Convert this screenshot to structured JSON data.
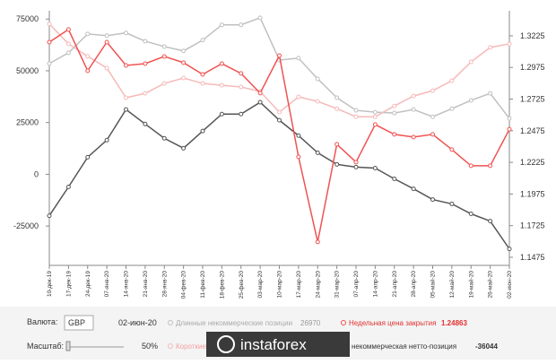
{
  "chart_data": {
    "type": "line",
    "categories": [
      "10-дек-19",
      "17-дек-19",
      "24-дек-19",
      "07-янв-20",
      "14-янв-20",
      "21-янв-20",
      "28-янв-20",
      "04-фев-20",
      "11-фев-20",
      "18-фев-20",
      "25-фев-20",
      "03-мар-20",
      "10-мар-20",
      "17-мар-20",
      "24-мар-20",
      "31-мар-20",
      "07-апр-20",
      "14-апр-20",
      "21-апр-20",
      "28-апр-20",
      "05-май-20",
      "12-май-20",
      "19-май-20",
      "26-май-20",
      "02-июн-20"
    ],
    "ylim": [
      -44000,
      79000
    ],
    "yticks": [
      -25000,
      0,
      25000,
      50000,
      75000
    ],
    "y2lim": [
      1.1411,
      1.3423
    ],
    "y2ticks": [
      1.1475,
      1.1725,
      1.1975,
      1.2225,
      1.2475,
      1.2725,
      1.2975,
      1.3225
    ],
    "series": [
      {
        "name": "Длинные некоммерческие позиции",
        "color": "#c0c0c0",
        "values": [
          53500,
          58700,
          67800,
          67000,
          68300,
          64300,
          61700,
          59600,
          64800,
          72200,
          72200,
          75600,
          55200,
          56100,
          46100,
          37000,
          30900,
          30000,
          29600,
          31300,
          27800,
          31700,
          35700,
          39100,
          26970
        ]
      },
      {
        "name": "Короткие",
        "color": "#f6b9b9",
        "values": [
          72600,
          63000,
          57000,
          51300,
          37000,
          39100,
          43900,
          46500,
          43900,
          43000,
          42200,
          40000,
          30000,
          37400,
          35200,
          31700,
          27800,
          27800,
          33000,
          37800,
          40400,
          45200,
          54300,
          61300,
          63000
        ]
      },
      {
        "name": "некоммерческая нетто-позиция",
        "color": "#555555",
        "values": [
          -20000,
          -6100,
          8260,
          16500,
          31300,
          24300,
          17400,
          12600,
          20900,
          29100,
          29100,
          34800,
          26100,
          18700,
          10400,
          4800,
          3500,
          3000,
          -2200,
          -7000,
          -12200,
          -14300,
          -19100,
          -22600,
          -36044
        ]
      },
      {
        "name": "Недельная цена закрытия",
        "color": "#f05252",
        "axis": "y2",
        "values": [
          1.3175,
          1.3275,
          1.2949,
          1.3175,
          1.2991,
          1.3005,
          1.3062,
          1.3013,
          1.292,
          1.3005,
          1.2928,
          1.2772,
          1.3069,
          1.2269,
          1.1596,
          1.2368,
          1.2227,
          1.2524,
          1.2446,
          1.2425,
          1.2446,
          1.2326,
          1.2198,
          1.2198,
          1.24863
        ]
      }
    ],
    "controls": {
      "currency_label": "Валюта:",
      "currency": "GBP",
      "scale_label": "Масштаб:",
      "scale": "50%"
    },
    "watermark": "instaforex"
  }
}
